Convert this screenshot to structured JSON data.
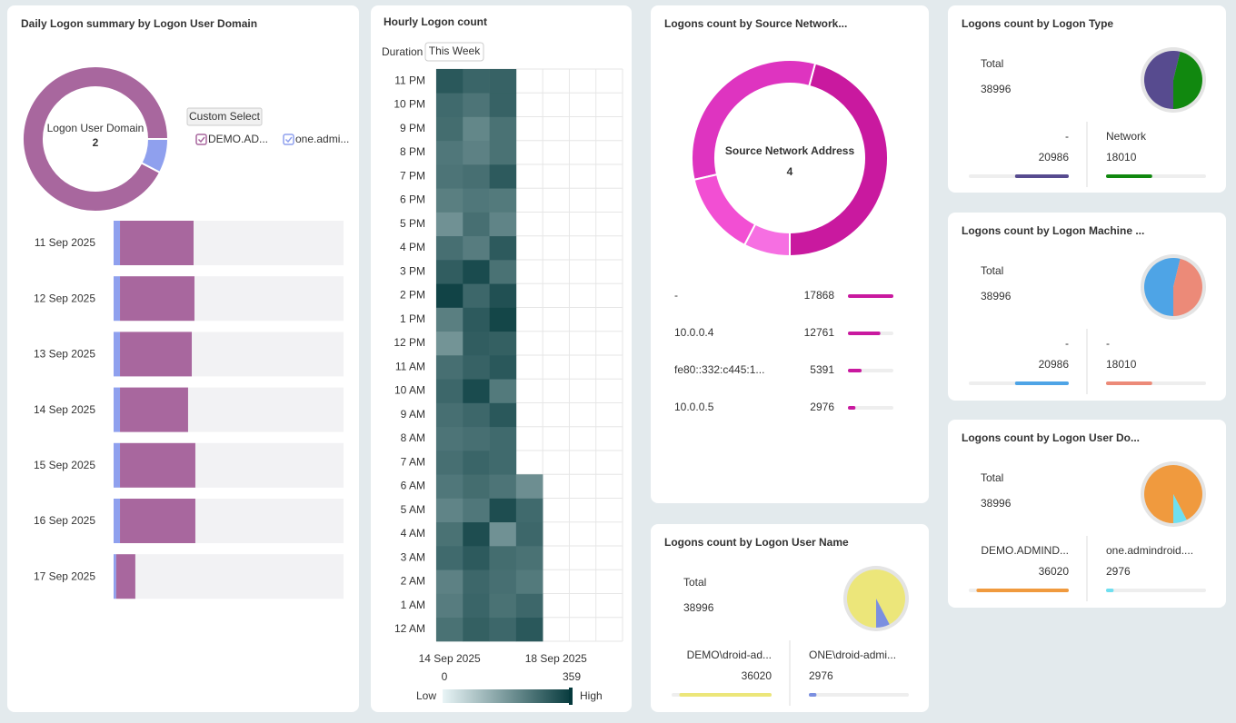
{
  "chart_data": [
    {
      "type": "donut",
      "title": "Daily Logon summary by Logon User Domain",
      "center_label": "Logon User Domain",
      "center_value": 2,
      "button": "Custom Select",
      "values": [
        36020,
        2976
      ],
      "colors": [
        "#a8679e",
        "#8fa0ee"
      ]
    },
    {
      "type": "bar",
      "orientation": "horizontal",
      "stacked": true,
      "categories": [
        "11 Sep 2025",
        "12 Sep 2025",
        "13 Sep 2025",
        "14 Sep 2025",
        "15 Sep 2025",
        "16 Sep 2025",
        "17 Sep 2025"
      ],
      "series": [
        {
          "name": "one.admi...",
          "color": "#8fa0ee",
          "values": [
            500,
            500,
            500,
            500,
            500,
            500,
            200
          ]
        },
        {
          "name": "DEMO.AD...",
          "color": "#a8679e",
          "values": [
            5760,
            5830,
            5620,
            5330,
            5900,
            5900,
            1500
          ]
        }
      ],
      "xlim": [
        0,
        18000
      ]
    },
    {
      "type": "heatmap",
      "title": "Hourly Logon count",
      "duration_label": "Duration",
      "duration": "This Week",
      "categories": [
        "14 Sep 2025",
        null,
        null,
        null,
        "18 Sep 2025",
        null,
        null
      ],
      "y_categories": [
        "12 AM",
        "1 AM",
        "2 AM",
        "3 AM",
        "4 AM",
        "5 AM",
        "6 AM",
        "7 AM",
        "8 AM",
        "9 AM",
        "10 AM",
        "11 AM",
        "12 PM",
        "1 PM",
        "2 PM",
        "3 PM",
        "4 PM",
        "5 PM",
        "6 PM",
        "7 PM",
        "8 PM",
        "9 PM",
        "10 PM",
        "11 PM"
      ],
      "z": [
        [
          250,
          285,
          270,
          300,
          null,
          null,
          null
        ],
        [
          230,
          275,
          250,
          270,
          null,
          null,
          null
        ],
        [
          220,
          270,
          255,
          235,
          null,
          null,
          null
        ],
        [
          265,
          295,
          260,
          250,
          null,
          null,
          null
        ],
        [
          250,
          320,
          190,
          270,
          null,
          null,
          null
        ],
        [
          215,
          240,
          320,
          265,
          null,
          null,
          null
        ],
        [
          240,
          260,
          245,
          195,
          null,
          null,
          null
        ],
        [
          255,
          275,
          265,
          null,
          null,
          null,
          null
        ],
        [
          245,
          255,
          265,
          null,
          null,
          null,
          null
        ],
        [
          255,
          270,
          300,
          null,
          null,
          null,
          null
        ],
        [
          270,
          325,
          235,
          null,
          null,
          null,
          null
        ],
        [
          255,
          280,
          300,
          null,
          null,
          null,
          null
        ],
        [
          185,
          290,
          285,
          null,
          null,
          null,
          null
        ],
        [
          225,
          295,
          335,
          null,
          null,
          null,
          null
        ],
        [
          340,
          270,
          315,
          null,
          null,
          null,
          null
        ],
        [
          290,
          325,
          250,
          null,
          null,
          null,
          null
        ],
        [
          255,
          230,
          295,
          null,
          null,
          null,
          null
        ],
        [
          190,
          255,
          215,
          null,
          null,
          null,
          null
        ],
        [
          225,
          240,
          235,
          null,
          null,
          null,
          null
        ],
        [
          245,
          255,
          295,
          null,
          null,
          null,
          null
        ],
        [
          240,
          220,
          250,
          null,
          null,
          null,
          null
        ],
        [
          260,
          210,
          250,
          null,
          null,
          null,
          null
        ],
        [
          265,
          245,
          280,
          null,
          null,
          null,
          null
        ],
        [
          300,
          275,
          280,
          null,
          null,
          null,
          null
        ]
      ],
      "clim": [
        0,
        359
      ],
      "colors": [
        "#e8f4f6",
        "#05393c"
      ],
      "low_label": "Low",
      "high_label": "High"
    },
    {
      "type": "donut",
      "title": "Logons count by Source Network...",
      "center_label": "Source Network Address",
      "center_value": 4,
      "categories": [
        "-",
        "10.0.0.4",
        "fe80::332:c445:1...",
        "10.0.0.5"
      ],
      "values": [
        17868,
        12761,
        5391,
        2976
      ],
      "colors": [
        "#c9199f",
        "#de34c0",
        "#f24fd3",
        "#f66fe2"
      ]
    },
    {
      "type": "pie",
      "title": "Logons count by Logon User Name",
      "total_label": "Total",
      "total": 38996,
      "categories": [
        "DEMO\\droid-ad...",
        "ONE\\droid-admi..."
      ],
      "values": [
        36020,
        2976
      ],
      "colors": [
        "#ece67a",
        "#7b8fe0"
      ]
    },
    {
      "type": "pie",
      "title": "Logons count by Logon Type",
      "total_label": "Total",
      "total": 38996,
      "categories": [
        "-",
        "Network"
      ],
      "values": [
        20986,
        18010
      ],
      "colors": [
        "#574b8f",
        "#11880f"
      ]
    },
    {
      "type": "pie",
      "title": "Logons count by Logon Machine ...",
      "total_label": "Total",
      "total": 38996,
      "categories": [
        "-",
        "-"
      ],
      "values": [
        20986,
        18010
      ],
      "colors": [
        "#4ea4e6",
        "#ec8a78"
      ]
    },
    {
      "type": "pie",
      "title": "Logons count by Logon User Do...",
      "total_label": "Total",
      "total": 38996,
      "categories": [
        "DEMO.ADMIND...",
        "one.admindroid...."
      ],
      "values": [
        36020,
        2976
      ],
      "colors": [
        "#f09a3e",
        "#6fdff0"
      ]
    }
  ]
}
